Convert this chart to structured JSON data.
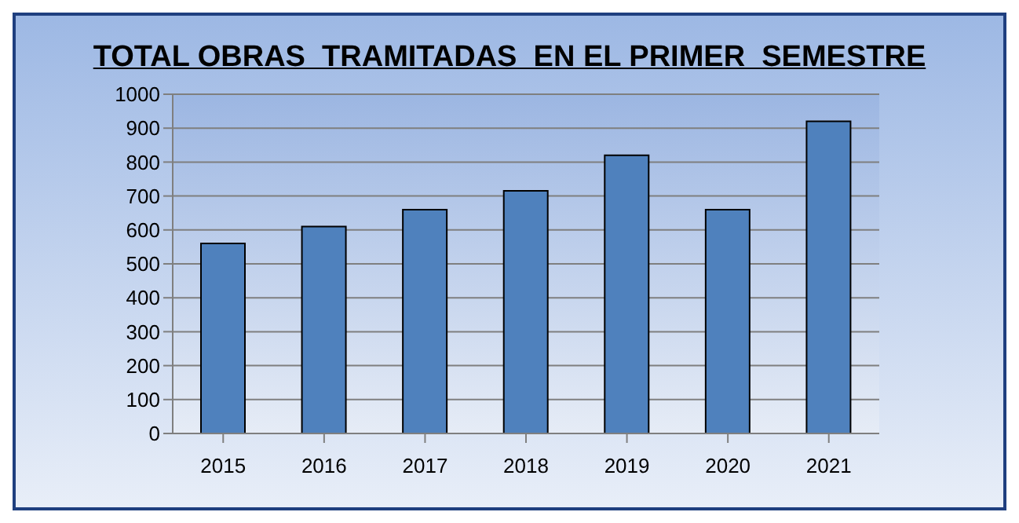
{
  "chart_data": {
    "type": "bar",
    "title": "TOTAL OBRAS  TRAMITADAS  EN EL PRIMER  SEMESTRE",
    "categories": [
      "2015",
      "2016",
      "2017",
      "2018",
      "2019",
      "2020",
      "2021"
    ],
    "values": [
      560,
      610,
      660,
      715,
      820,
      660,
      920
    ],
    "color": "#4f81bd",
    "ylim": [
      0,
      1000
    ],
    "yticks": [
      0,
      100,
      200,
      300,
      400,
      500,
      600,
      700,
      800,
      900,
      1000
    ],
    "grid": "y"
  }
}
